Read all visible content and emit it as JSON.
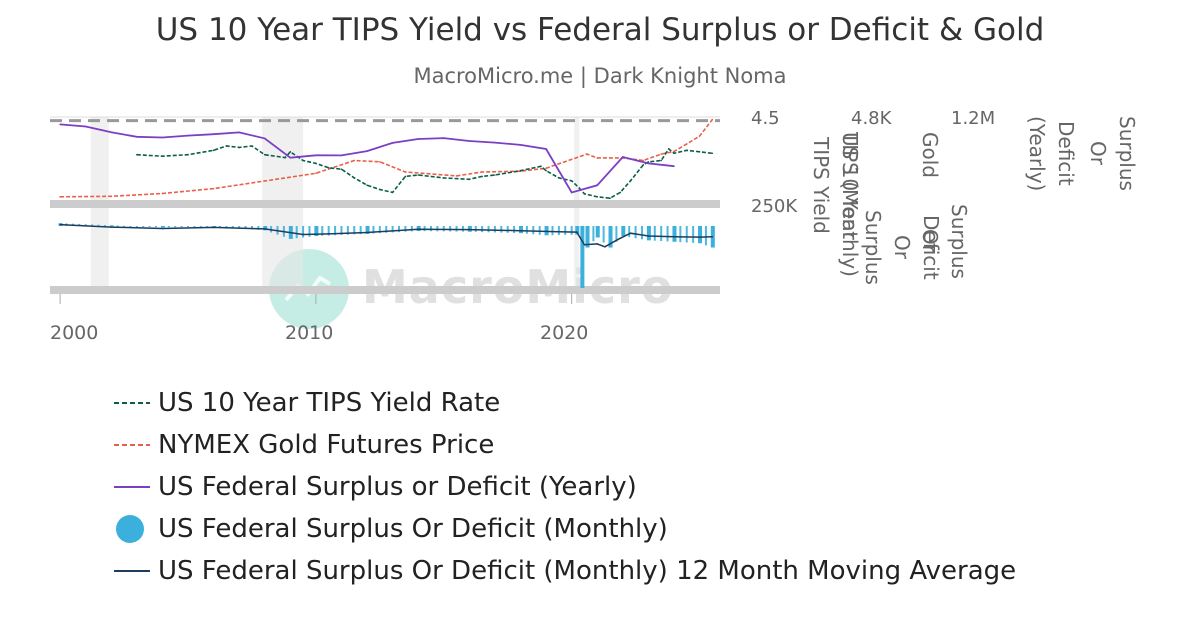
{
  "title": "US 10 Year TIPS Yield vs Federal Surplus or Deficit & Gold",
  "subtitle": "MacroMicro.me | Dark Knight Noma",
  "watermark": "MacroMicro",
  "colors": {
    "tips": "#0b5e4a",
    "gold": "#e8604a",
    "yearly": "#7b3fc4",
    "monthly": "#3cb0dd",
    "ma": "#1d3d5c",
    "recession": "#e6e6e6"
  },
  "axis_labels": {
    "tips_top": "4.5",
    "gold_top": "4.8K",
    "gold_bottom": "250K",
    "deficit_top": "1.2M",
    "tips_title": "US 10 Year\nTIPS Yield",
    "tips_monthly_title": "TIPS (Monthly)",
    "deficit_title": "Deficit\nOr\nSurplus",
    "gold_title": "Gold",
    "surplus_or_title": "Surplus\nOr",
    "yearly_title": "Deficit\n(Yearly)",
    "surplus_right_title": "Surplus\nOr"
  },
  "x_ticks": [
    "2000",
    "2010",
    "2020"
  ],
  "legend": [
    {
      "key": "tips",
      "label": "US 10 Year TIPS Yield Rate",
      "symbol": "dash"
    },
    {
      "key": "gold",
      "label": "NYMEX Gold Futures Price",
      "symbol": "dash"
    },
    {
      "key": "yearly",
      "label": "US Federal Surplus or Deficit (Yearly)",
      "symbol": "line"
    },
    {
      "key": "monthly",
      "label": "US Federal Surplus Or Deficit (Monthly)",
      "symbol": "circle"
    },
    {
      "key": "ma",
      "label": "US Federal Surplus Or Deficit (Monthly) 12 Month Moving Average",
      "symbol": "line"
    }
  ],
  "chart_data": {
    "type": "line",
    "title": "US 10 Year TIPS Yield vs Federal Surplus or Deficit & Gold",
    "x_range": [
      1999.8,
      2025.8
    ],
    "recessions": [
      [
        2001.2,
        2001.9
      ],
      [
        2007.9,
        2009.5
      ],
      [
        2020.1,
        2020.3
      ]
    ],
    "reference_line_tips": 4.25,
    "series": [
      {
        "name": "US 10 Year TIPS Yield Rate",
        "key": "tips",
        "style": "dash",
        "x": [
          2003.0,
          2004.0,
          2005.0,
          2006.0,
          2006.5,
          2007.0,
          2007.5,
          2008.0,
          2008.8,
          2009.0,
          2009.5,
          2010.0,
          2010.5,
          2011.0,
          2011.5,
          2012.0,
          2012.5,
          2013.0,
          2013.5,
          2014.0,
          2015.0,
          2016.0,
          2016.5,
          2017.0,
          2018.0,
          2018.8,
          2019.0,
          2019.5,
          2020.0,
          2020.3,
          2020.5,
          2021.0,
          2021.5,
          2021.9,
          2022.3,
          2022.8,
          2023.0,
          2023.5,
          2023.8,
          2024.0,
          2024.5,
          2025.0,
          2025.5
        ],
        "values": [
          1.9,
          1.8,
          1.9,
          2.2,
          2.5,
          2.4,
          2.5,
          1.9,
          1.7,
          2.1,
          1.5,
          1.3,
          1.0,
          0.9,
          0.3,
          -0.2,
          -0.5,
          -0.7,
          0.4,
          0.5,
          0.3,
          0.2,
          0.4,
          0.5,
          0.8,
          1.1,
          0.8,
          0.3,
          0.1,
          -0.4,
          -0.8,
          -1.0,
          -1.1,
          -0.7,
          0.1,
          1.2,
          1.4,
          1.5,
          2.3,
          2.0,
          2.2,
          2.1,
          2.0
        ]
      },
      {
        "name": "NYMEX Gold Futures Price",
        "key": "gold",
        "style": "dash",
        "x": [
          2000.0,
          2002.0,
          2004.0,
          2006.0,
          2008.0,
          2010.0,
          2011.5,
          2012.5,
          2013.5,
          2015.5,
          2016.5,
          2018.0,
          2019.0,
          2020.6,
          2021.0,
          2022.0,
          2022.8,
          2023.5,
          2024.0,
          2024.5,
          2025.0,
          2025.5
        ],
        "values": [
          280,
          300,
          410,
          600,
          900,
          1200,
          1700,
          1650,
          1250,
          1100,
          1250,
          1280,
          1400,
          1950,
          1800,
          1800,
          1700,
          1950,
          2050,
          2350,
          2650,
          3300
        ]
      },
      {
        "name": "US Federal Surplus or Deficit (Yearly)",
        "key": "yearly",
        "style": "line",
        "x": [
          2000.0,
          2001.0,
          2002.0,
          2003.0,
          2004.0,
          2005.0,
          2006.0,
          2007.0,
          2008.0,
          2009.0,
          2010.0,
          2011.0,
          2012.0,
          2013.0,
          2014.0,
          2015.0,
          2016.0,
          2017.0,
          2018.0,
          2019.0,
          2020.0,
          2021.0,
          2022.0,
          2023.0,
          2024.0
        ],
        "values": [
          236,
          128,
          -158,
          -378,
          -413,
          -318,
          -248,
          -161,
          -459,
          -1413,
          -1294,
          -1300,
          -1087,
          -680,
          -485,
          -442,
          -585,
          -665,
          -779,
          -984,
          -3132,
          -2775,
          -1375,
          -1695,
          -1833
        ]
      },
      {
        "name": "US Federal Surplus Or Deficit (Monthly)",
        "key": "monthly",
        "style": "bar",
        "x": [
          2000.0,
          2002.0,
          2004.0,
          2006.0,
          2008.0,
          2009.0,
          2010.0,
          2012.0,
          2014.0,
          2016.0,
          2018.0,
          2019.0,
          2020.2,
          2020.4,
          2020.6,
          2021.0,
          2021.5,
          2022.0,
          2023.0,
          2024.0,
          2025.0,
          2025.5
        ],
        "values": [
          40,
          10,
          -20,
          -10,
          -60,
          -180,
          -140,
          -110,
          -70,
          -80,
          -100,
          -130,
          -120,
          -864,
          -300,
          -160,
          -300,
          -140,
          -200,
          -220,
          -240,
          -300
        ]
      },
      {
        "name": "US Federal Surplus Or Deficit (Monthly) 12 Month Moving Average",
        "key": "ma",
        "style": "line",
        "x": [
          2000.0,
          2002.0,
          2004.0,
          2006.0,
          2008.0,
          2009.5,
          2010.5,
          2012.0,
          2014.0,
          2016.0,
          2018.0,
          2019.5,
          2020.2,
          2020.5,
          2021.0,
          2021.3,
          2021.8,
          2022.3,
          2023.0,
          2024.0,
          2025.0,
          2025.5
        ],
        "values": [
          20,
          -15,
          -35,
          -20,
          -40,
          -118,
          -110,
          -90,
          -45,
          -50,
          -65,
          -80,
          -85,
          -260,
          -250,
          -290,
          -190,
          -100,
          -140,
          -150,
          -155,
          -150
        ]
      }
    ]
  }
}
